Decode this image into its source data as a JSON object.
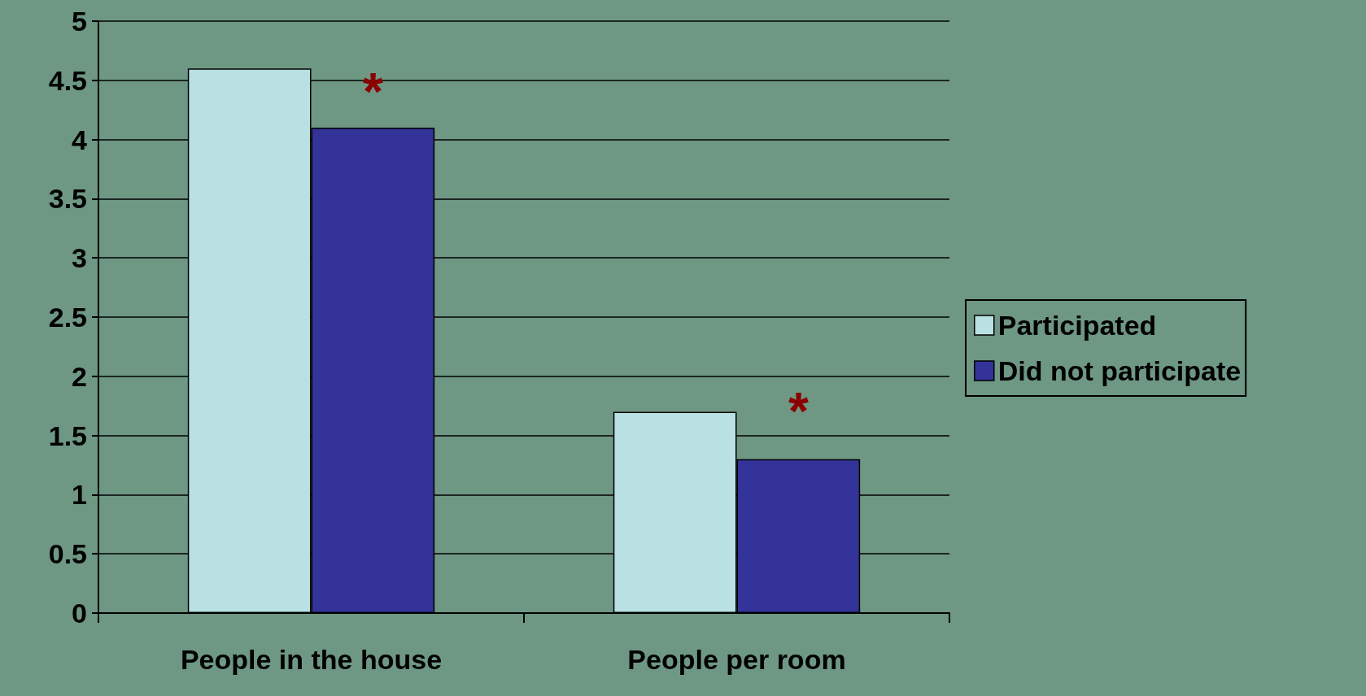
{
  "chart_data": {
    "type": "bar",
    "categories": [
      "People in the house",
      "People per room"
    ],
    "series": [
      {
        "name": "Participated",
        "color": "#b9e0e2",
        "values": [
          4.6,
          1.7
        ]
      },
      {
        "name": "Did not participate",
        "color": "#333399",
        "values": [
          4.1,
          1.3
        ]
      }
    ],
    "ylim": [
      0,
      5
    ],
    "yticks": [
      0,
      0.5,
      1,
      1.5,
      2,
      2.5,
      3,
      3.5,
      4,
      4.5,
      5
    ],
    "annotations": [
      {
        "text": "*",
        "x": "People in the house",
        "y": 4.4
      },
      {
        "text": "*",
        "x": "People per room",
        "y": 1.7
      }
    ],
    "grid": "y",
    "legend": "right"
  }
}
